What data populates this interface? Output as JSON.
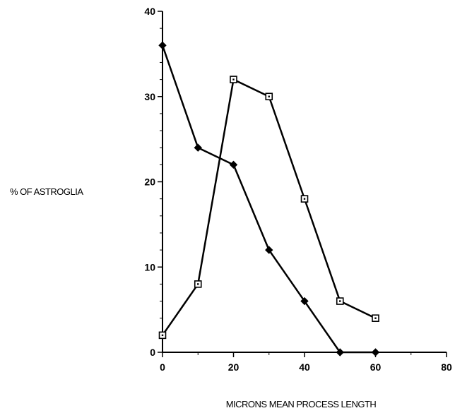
{
  "chart_data": {
    "type": "line",
    "title": "",
    "xlabel": "MICRONS MEAN PROCESS LENGTH",
    "ylabel": "% OF ASTROGLIA",
    "xlim": [
      0,
      80
    ],
    "ylim": [
      0,
      40
    ],
    "x_ticks": [
      0,
      20,
      40,
      60,
      80
    ],
    "y_ticks": [
      0,
      10,
      20,
      30,
      40
    ],
    "grid": false,
    "legend": "none",
    "series": [
      {
        "marker": "filled-diamond",
        "x": [
          0,
          10,
          20,
          30,
          40,
          50,
          60
        ],
        "values": [
          36,
          24,
          22,
          12,
          6,
          0,
          0
        ]
      },
      {
        "marker": "open-square",
        "x": [
          0,
          10,
          20,
          30,
          40,
          50,
          60
        ],
        "values": [
          2,
          8,
          32,
          30,
          18,
          6,
          4
        ]
      }
    ],
    "colors": {
      "line": "#000000",
      "background": "#ffffff"
    }
  }
}
